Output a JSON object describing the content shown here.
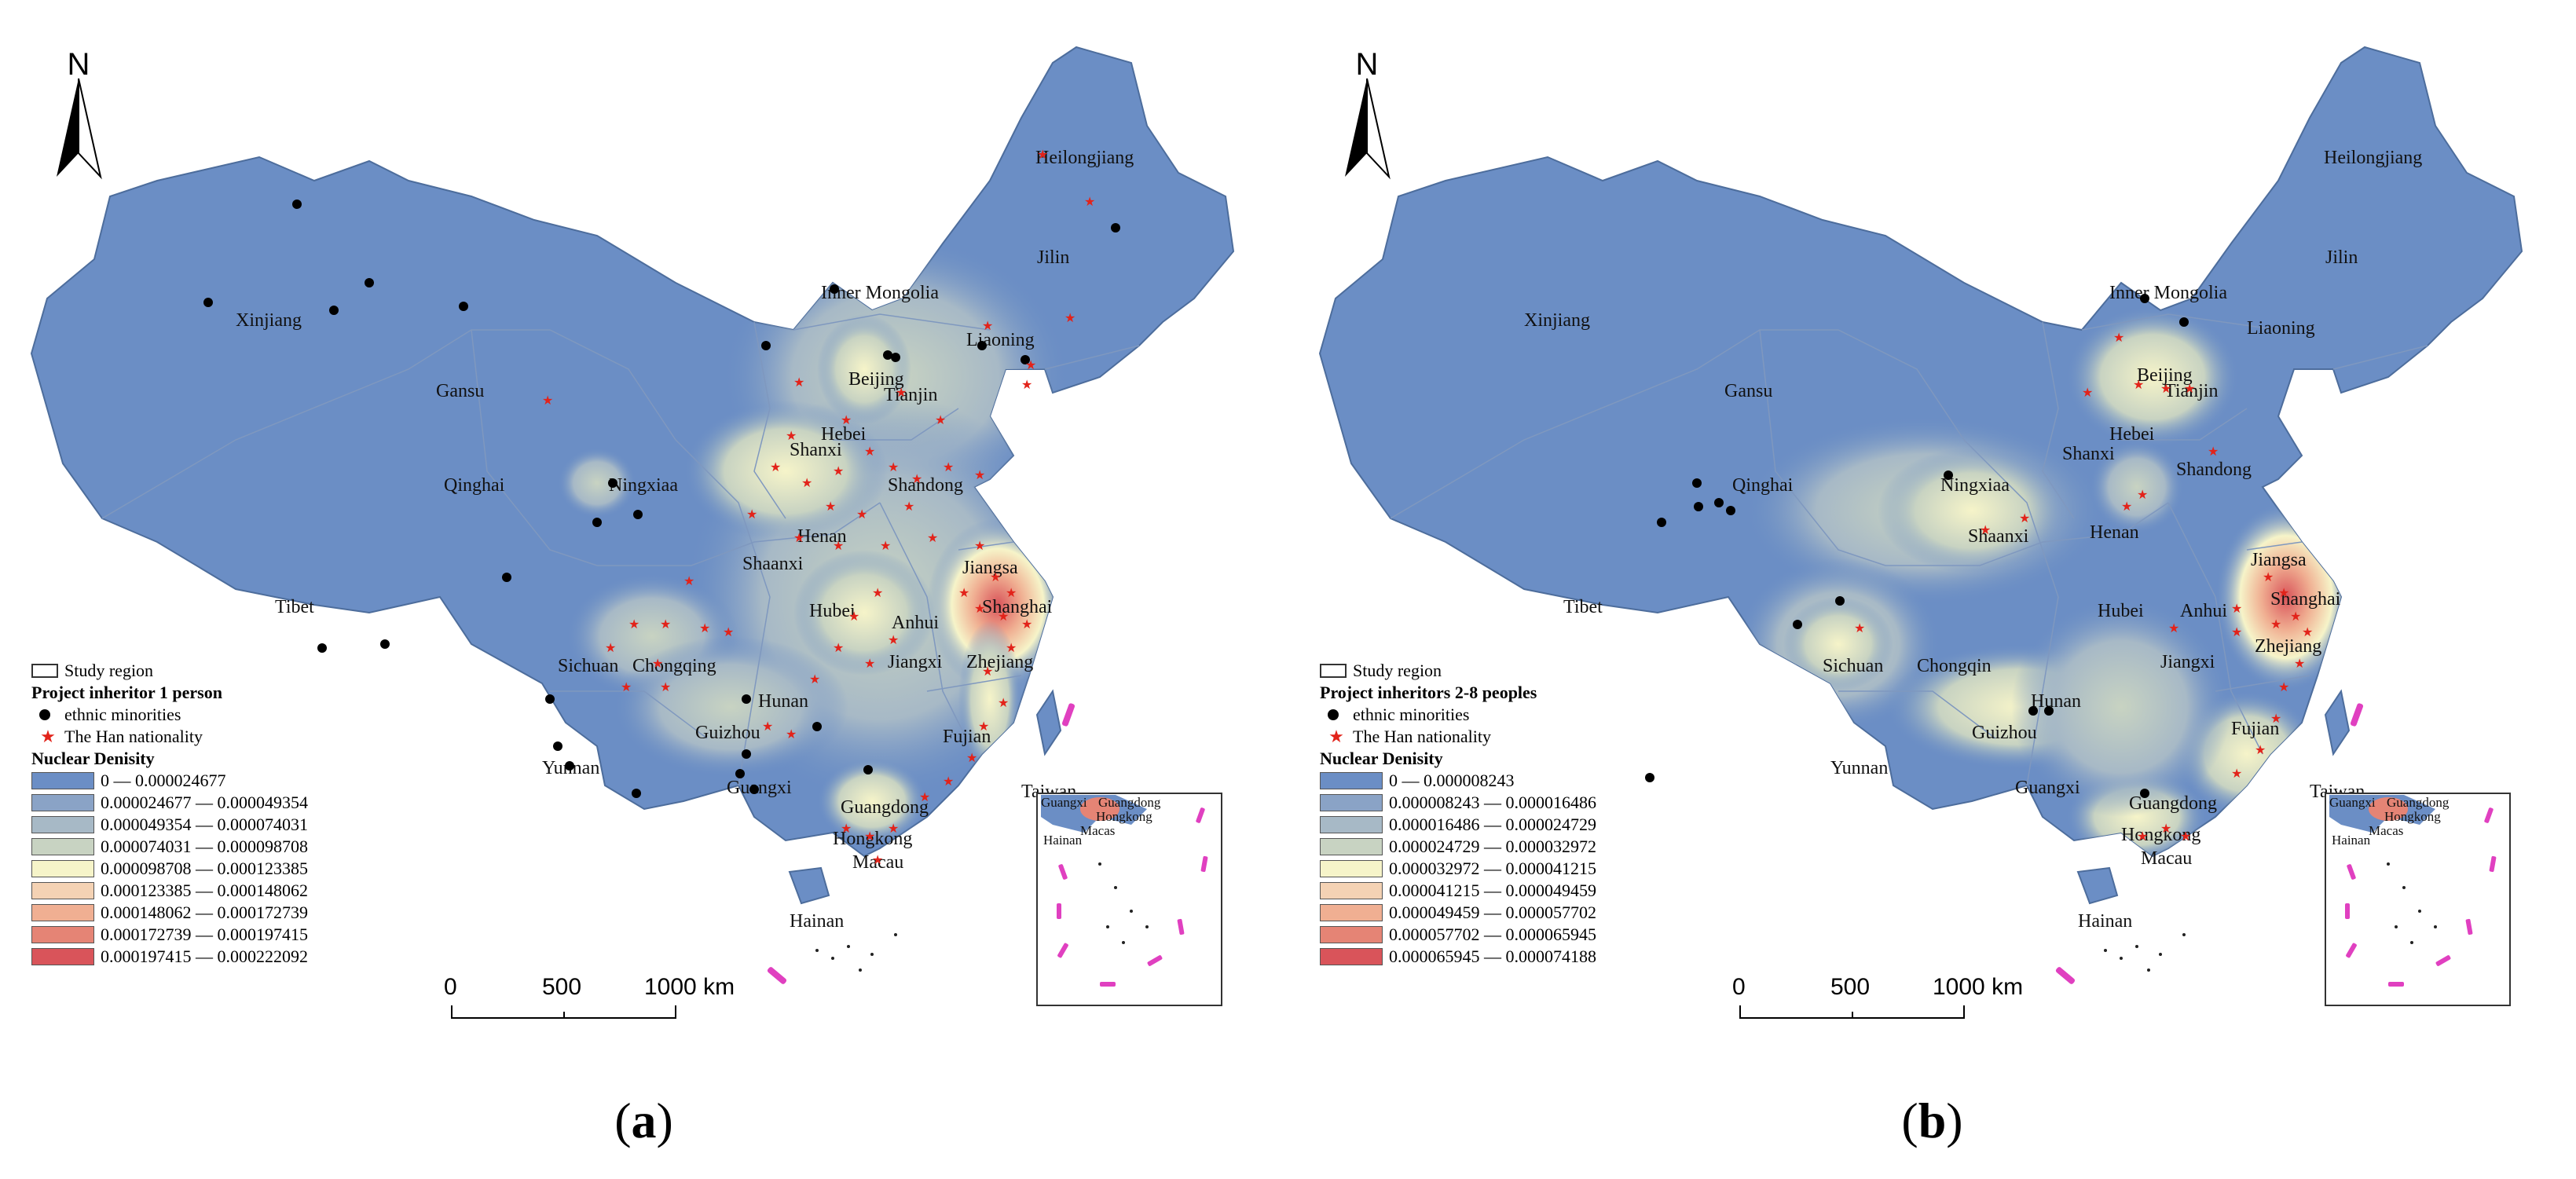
{
  "shared": {
    "north": "N",
    "scale": {
      "zero": "0",
      "mid": "500",
      "end": "1000",
      "unit": "km"
    },
    "legend_study": "Study region",
    "legend_minority": "ethnic minorities",
    "legend_han": "The Han nationality",
    "legend_density_title": "Nuclear Denisity",
    "ramp_colors": [
      "#6b8ec5",
      "#8aa3c6",
      "#a7b9c6",
      "#c8d3c2",
      "#f6f4c9",
      "#f4d2b4",
      "#f0af92",
      "#e58475",
      "#d9545a"
    ],
    "provinces": {
      "xinjiang": "Xinjiang",
      "gansu": "Gansu",
      "qinghai": "Qinghai",
      "tibet": "Tibet",
      "sichuan": "Sichuan",
      "yunnan": "Yunnan",
      "guizhou": "Guizhou",
      "guangxi": "Guangxi",
      "hainan": "Hainan",
      "guangdong": "Guangdong",
      "hongkong": "Hongkong",
      "macau": "Macau",
      "fujian": "Fujian",
      "taiwan": "Taiwan",
      "zhejiang": "Zhejiang",
      "shanghai": "Shanghai",
      "jiangsu": "Jiangsa",
      "anhui": "Anhui",
      "jiangxi": "Jiangxi",
      "hubei": "Hubei",
      "hunan": "Hunan",
      "henan": "Henan",
      "shandong": "Shandong",
      "hebei": "Hebei",
      "beijing": "Beijing",
      "tianjin": "Tianjin",
      "shanxi": "Shanxi",
      "shaanxi": "Shaanxi",
      "ningxia": "Ningxiaa",
      "inner_mongolia": "Inner Mongolia",
      "liaoning": "Liaoning",
      "jilin": "Jilin",
      "heilongjiang": "Heilongjiang",
      "chongqing_a": "Chongqing",
      "chongqing_b": "Chongqin"
    },
    "inset": {
      "guangxi": "Guangxi",
      "guangdong": "Guangdong",
      "hongkong": "Hongkong",
      "macau": "Macas",
      "hainan": "Hainan"
    }
  },
  "panel_a": {
    "caption_letter": "a",
    "legend_symbol_title": "Project inheritor 1 person",
    "density_classes": [
      "0 — 0.000024677",
      "0.000024677 — 0.000049354",
      "0.000049354 — 0.000074031",
      "0.000074031 — 0.000098708",
      "0.000098708 — 0.000123385",
      "0.000123385 — 0.000148062",
      "0.000148062 — 0.000172739",
      "0.000172739 — 0.000197415",
      "0.000197415 — 0.000222092"
    ]
  },
  "panel_b": {
    "caption_letter": "b",
    "legend_symbol_title": "Project inheritors 2-8 peoples",
    "density_classes": [
      "0 — 0.000008243",
      "0.000008243 — 0.000016486",
      "0.000016486 — 0.000024729",
      "0.000024729 — 0.000032972",
      "0.000032972 — 0.000041215",
      "0.000041215 — 0.000049459",
      "0.000049459 — 0.000057702",
      "0.000057702 — 0.000065945",
      "0.000065945 — 0.000074188"
    ]
  }
}
